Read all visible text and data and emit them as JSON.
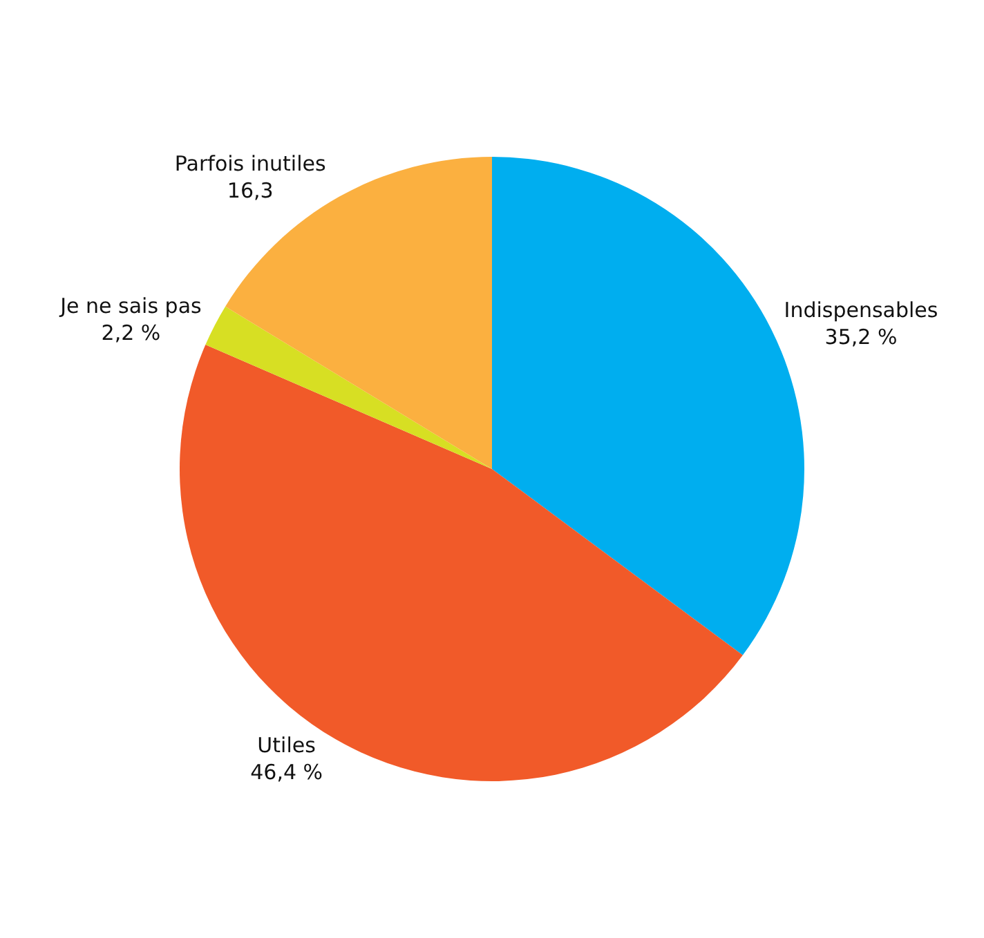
{
  "chart_data": {
    "type": "pie",
    "categories": [
      "Indispensables",
      "Utiles",
      "Je ne sais pas",
      "Parfois inutiles"
    ],
    "values": [
      35.2,
      46.4,
      2.2,
      16.3
    ],
    "value_labels": [
      "35,2 %",
      "46,4 %",
      "2,2 %",
      "16,3"
    ],
    "colors": [
      "#00aeef",
      "#f15a29",
      "#d7df23",
      "#fbb040"
    ],
    "legend": false
  }
}
